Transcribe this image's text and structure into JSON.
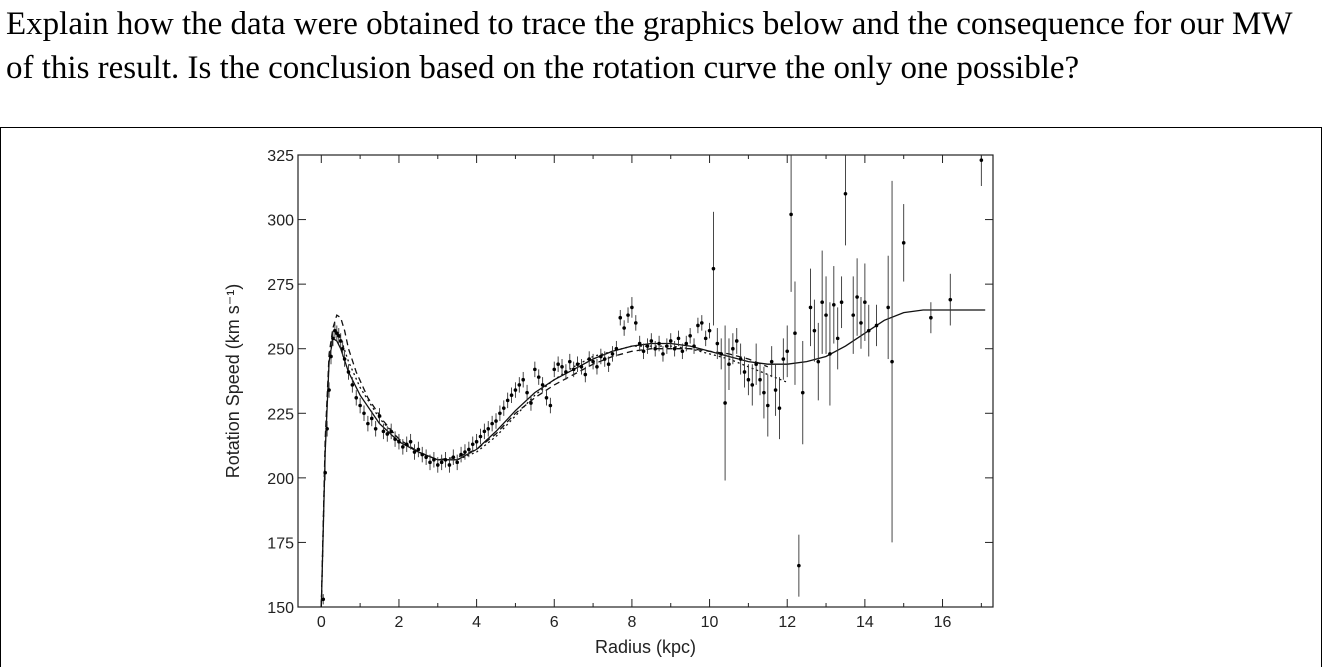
{
  "question": {
    "text": "Explain how the data were obtained to trace the graphics below and the consequence for our MW of this result. Is the conclusion based on the rotation curve the only one possible?"
  },
  "chart_data": {
    "type": "scatter",
    "title": "",
    "xlabel": "Radius (kpc)",
    "ylabel": "Rotation Speed (km s⁻¹)",
    "xlim": [
      -0.6,
      17.3
    ],
    "ylim": [
      150,
      325
    ],
    "xticks": [
      0,
      2,
      4,
      6,
      8,
      10,
      12,
      14,
      16
    ],
    "yticks": [
      150,
      175,
      200,
      225,
      250,
      275,
      300,
      325
    ],
    "grid": false,
    "series": [
      {
        "style": "points-with-errorbars",
        "points": [
          [
            0.05,
            153,
            2
          ],
          [
            0.1,
            202,
            3
          ],
          [
            0.15,
            219,
            3
          ],
          [
            0.2,
            234,
            3
          ],
          [
            0.25,
            247,
            3
          ],
          [
            0.3,
            254,
            3
          ],
          [
            0.35,
            257,
            3
          ],
          [
            0.4,
            256,
            3
          ],
          [
            0.45,
            255,
            3
          ],
          [
            0.5,
            253,
            3
          ],
          [
            0.55,
            250,
            3
          ],
          [
            0.6,
            246,
            3
          ],
          [
            0.7,
            241,
            3
          ],
          [
            0.8,
            236,
            3
          ],
          [
            0.9,
            231,
            3
          ],
          [
            1.0,
            228,
            3
          ],
          [
            1.1,
            225,
            3
          ],
          [
            1.2,
            221,
            3
          ],
          [
            1.3,
            223,
            3
          ],
          [
            1.4,
            219,
            3
          ],
          [
            1.5,
            224,
            3
          ],
          [
            1.6,
            218,
            3
          ],
          [
            1.7,
            217,
            3
          ],
          [
            1.8,
            218,
            3
          ],
          [
            1.9,
            215,
            3
          ],
          [
            2.0,
            214,
            3
          ],
          [
            2.1,
            212,
            3
          ],
          [
            2.2,
            213,
            3
          ],
          [
            2.3,
            214,
            3
          ],
          [
            2.4,
            210,
            3
          ],
          [
            2.5,
            211,
            3
          ],
          [
            2.6,
            209,
            3
          ],
          [
            2.7,
            208,
            3
          ],
          [
            2.8,
            206,
            3
          ],
          [
            2.9,
            207,
            3
          ],
          [
            3.0,
            205,
            3
          ],
          [
            3.1,
            206,
            3
          ],
          [
            3.2,
            207,
            3
          ],
          [
            3.3,
            205,
            3
          ],
          [
            3.4,
            208,
            3
          ],
          [
            3.5,
            206,
            3
          ],
          [
            3.6,
            209,
            3
          ],
          [
            3.7,
            210,
            3
          ],
          [
            3.8,
            211,
            3
          ],
          [
            3.9,
            213,
            3
          ],
          [
            4.0,
            214,
            3
          ],
          [
            4.1,
            216,
            3
          ],
          [
            4.2,
            218,
            3
          ],
          [
            4.3,
            219,
            3
          ],
          [
            4.4,
            221,
            3
          ],
          [
            4.5,
            222,
            3
          ],
          [
            4.6,
            225,
            3
          ],
          [
            4.7,
            227,
            3
          ],
          [
            4.8,
            230,
            3
          ],
          [
            4.9,
            232,
            3
          ],
          [
            5.0,
            234,
            3
          ],
          [
            5.1,
            236,
            3
          ],
          [
            5.2,
            238,
            3
          ],
          [
            5.3,
            233,
            3
          ],
          [
            5.4,
            229,
            3
          ],
          [
            5.5,
            242,
            3
          ],
          [
            5.6,
            239,
            3
          ],
          [
            5.7,
            236,
            3
          ],
          [
            5.8,
            231,
            3
          ],
          [
            5.9,
            228,
            3
          ],
          [
            6.0,
            242,
            3
          ],
          [
            6.1,
            244,
            3
          ],
          [
            6.2,
            243,
            3
          ],
          [
            6.3,
            241,
            3
          ],
          [
            6.4,
            245,
            3
          ],
          [
            6.5,
            242,
            3
          ],
          [
            6.6,
            244,
            3
          ],
          [
            6.7,
            243,
            3
          ],
          [
            6.8,
            240,
            3
          ],
          [
            6.9,
            246,
            3
          ],
          [
            7.0,
            245,
            3
          ],
          [
            7.1,
            243,
            3
          ],
          [
            7.2,
            247,
            3
          ],
          [
            7.3,
            246,
            3
          ],
          [
            7.4,
            244,
            3
          ],
          [
            7.5,
            248,
            3
          ],
          [
            7.6,
            250,
            3
          ],
          [
            7.7,
            262,
            3
          ],
          [
            7.8,
            258,
            3
          ],
          [
            7.9,
            263,
            3
          ],
          [
            8.0,
            266,
            4
          ],
          [
            8.1,
            260,
            3
          ],
          [
            8.2,
            252,
            3
          ],
          [
            8.3,
            249,
            3
          ],
          [
            8.4,
            251,
            3
          ],
          [
            8.5,
            253,
            3
          ],
          [
            8.6,
            250,
            3
          ],
          [
            8.7,
            252,
            3
          ],
          [
            8.8,
            248,
            3
          ],
          [
            8.9,
            251,
            3
          ],
          [
            9.0,
            253,
            3
          ],
          [
            9.1,
            250,
            3
          ],
          [
            9.2,
            254,
            3
          ],
          [
            9.3,
            249,
            3
          ],
          [
            9.4,
            252,
            3
          ],
          [
            9.5,
            255,
            3
          ],
          [
            9.6,
            251,
            3
          ],
          [
            9.7,
            259,
            3
          ],
          [
            9.8,
            260,
            3
          ],
          [
            9.9,
            254,
            3
          ],
          [
            10.0,
            257,
            3
          ],
          [
            10.1,
            281,
            22
          ],
          [
            10.2,
            252,
            6
          ],
          [
            10.3,
            248,
            6
          ],
          [
            10.4,
            229,
            30
          ],
          [
            10.5,
            244,
            10
          ],
          [
            10.6,
            250,
            6
          ],
          [
            10.7,
            253,
            5
          ],
          [
            10.8,
            246,
            6
          ],
          [
            10.9,
            241,
            6
          ],
          [
            11.0,
            238,
            6
          ],
          [
            11.1,
            236,
            8
          ],
          [
            11.2,
            244,
            8
          ],
          [
            11.3,
            238,
            6
          ],
          [
            11.4,
            233,
            10
          ],
          [
            11.5,
            228,
            12
          ],
          [
            11.6,
            245,
            6
          ],
          [
            11.7,
            234,
            10
          ],
          [
            11.8,
            227,
            12
          ],
          [
            11.9,
            246,
            8
          ],
          [
            12.0,
            249,
            10
          ],
          [
            12.1,
            302,
            30
          ],
          [
            12.2,
            256,
            20
          ],
          [
            12.3,
            166,
            12
          ],
          [
            12.4,
            233,
            20
          ],
          [
            12.6,
            266,
            15
          ],
          [
            12.7,
            257,
            12
          ],
          [
            12.8,
            245,
            15
          ],
          [
            12.9,
            268,
            20
          ],
          [
            13.0,
            263,
            15
          ],
          [
            13.1,
            248,
            20
          ],
          [
            13.2,
            267,
            15
          ],
          [
            13.3,
            254,
            12
          ],
          [
            13.4,
            268,
            10
          ],
          [
            13.5,
            310,
            20
          ],
          [
            13.7,
            263,
            15
          ],
          [
            13.8,
            270,
            15
          ],
          [
            13.9,
            260,
            10
          ],
          [
            14.0,
            268,
            15
          ],
          [
            14.1,
            257,
            10
          ],
          [
            14.3,
            259,
            8
          ],
          [
            14.6,
            266,
            20
          ],
          [
            14.7,
            245,
            70
          ],
          [
            15.0,
            291,
            15
          ],
          [
            15.7,
            262,
            6
          ],
          [
            16.2,
            269,
            10
          ],
          [
            17.0,
            323,
            10
          ]
        ]
      },
      {
        "style": "solid-line",
        "points": [
          [
            0.0,
            150
          ],
          [
            0.1,
            210
          ],
          [
            0.2,
            245
          ],
          [
            0.3,
            254
          ],
          [
            0.4,
            253
          ],
          [
            0.5,
            250
          ],
          [
            0.7,
            241
          ],
          [
            1.0,
            232
          ],
          [
            1.5,
            221
          ],
          [
            2.0,
            214
          ],
          [
            2.5,
            210
          ],
          [
            3.0,
            207
          ],
          [
            3.5,
            207
          ],
          [
            4.0,
            211
          ],
          [
            4.5,
            218
          ],
          [
            5.0,
            226
          ],
          [
            5.5,
            233
          ],
          [
            6.0,
            238
          ],
          [
            6.5,
            242
          ],
          [
            7.0,
            246
          ],
          [
            7.5,
            249
          ],
          [
            8.0,
            251
          ],
          [
            8.5,
            252
          ],
          [
            9.0,
            252
          ],
          [
            9.5,
            251
          ],
          [
            10.0,
            249
          ],
          [
            10.5,
            247
          ],
          [
            11.0,
            245
          ],
          [
            11.5,
            244
          ],
          [
            12.0,
            244
          ],
          [
            12.5,
            245
          ],
          [
            13.0,
            247
          ],
          [
            13.5,
            251
          ],
          [
            14.0,
            256
          ],
          [
            14.5,
            261
          ],
          [
            15.0,
            264
          ],
          [
            15.5,
            265
          ],
          [
            16.0,
            265
          ],
          [
            16.5,
            265
          ],
          [
            17.1,
            265
          ]
        ]
      },
      {
        "style": "dashed-line",
        "points": [
          [
            0.0,
            150
          ],
          [
            0.1,
            215
          ],
          [
            0.2,
            248
          ],
          [
            0.3,
            258
          ],
          [
            0.4,
            263
          ],
          [
            0.5,
            262
          ],
          [
            0.6,
            257
          ],
          [
            0.7,
            250
          ],
          [
            0.9,
            241
          ],
          [
            1.2,
            231
          ],
          [
            1.6,
            222
          ],
          [
            2.0,
            215
          ],
          [
            2.5,
            210
          ],
          [
            3.0,
            207
          ],
          [
            3.5,
            208
          ],
          [
            4.0,
            211
          ],
          [
            4.5,
            217
          ],
          [
            5.0,
            225
          ],
          [
            5.5,
            231
          ],
          [
            6.0,
            236
          ],
          [
            6.5,
            240
          ],
          [
            7.0,
            244
          ],
          [
            7.5,
            247
          ],
          [
            8.0,
            249
          ],
          [
            8.5,
            250
          ],
          [
            9.0,
            250
          ],
          [
            9.5,
            250
          ],
          [
            10.0,
            249
          ],
          [
            10.5,
            248
          ],
          [
            11.0,
            246
          ],
          [
            11.5,
            243
          ]
        ]
      },
      {
        "style": "dotted-line",
        "points": [
          [
            0.0,
            150
          ],
          [
            0.1,
            212
          ],
          [
            0.2,
            246
          ],
          [
            0.3,
            255
          ],
          [
            0.4,
            256
          ],
          [
            0.5,
            254
          ],
          [
            0.7,
            245
          ],
          [
            1.0,
            235
          ],
          [
            1.5,
            223
          ],
          [
            2.0,
            215
          ],
          [
            2.5,
            210
          ],
          [
            3.0,
            207
          ],
          [
            3.5,
            207
          ],
          [
            4.0,
            210
          ],
          [
            4.5,
            216
          ],
          [
            5.0,
            224
          ],
          [
            5.5,
            232
          ],
          [
            6.0,
            238
          ],
          [
            6.5,
            243
          ],
          [
            7.0,
            247
          ],
          [
            7.5,
            249
          ],
          [
            8.0,
            251
          ],
          [
            8.5,
            251
          ],
          [
            9.0,
            251
          ],
          [
            9.5,
            250
          ],
          [
            10.0,
            248
          ],
          [
            10.5,
            246
          ],
          [
            11.0,
            243
          ],
          [
            11.5,
            240
          ],
          [
            12.0,
            237
          ]
        ]
      }
    ]
  }
}
